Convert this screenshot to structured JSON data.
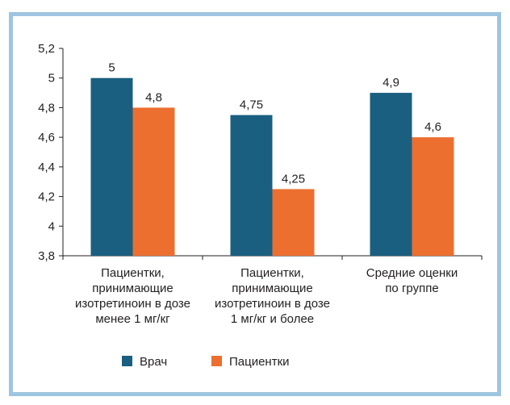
{
  "chart_data": {
    "type": "bar",
    "title": "",
    "xlabel": "",
    "ylabel": "",
    "ylim": [
      3.8,
      5.2
    ],
    "yticks": [
      3.8,
      4.0,
      4.2,
      4.4,
      4.6,
      4.8,
      5.0,
      5.2
    ],
    "ytick_labels": [
      "3,8",
      "4",
      "4,2",
      "4,4",
      "4,6",
      "4,8",
      "5",
      "5,2"
    ],
    "grid": false,
    "legend_position": "bottom",
    "categories": [
      [
        "Пациентки,",
        "принимающие",
        "изотретиноин в дозе",
        "менее 1 мг/кг"
      ],
      [
        "Пациентки,",
        "принимающие",
        "изотретиноин в дозе",
        "1 мг/кг и более"
      ],
      [
        "Средние оценки",
        "по группе"
      ]
    ],
    "series": [
      {
        "name": "Врач",
        "color": "#1a5f80",
        "values": [
          5,
          4.75,
          4.9
        ],
        "labels": [
          "5",
          "4,75",
          "4,9"
        ]
      },
      {
        "name": "Пациентки",
        "color": "#ec6f30",
        "values": [
          4.8,
          4.25,
          4.6
        ],
        "labels": [
          "4,8",
          "4,25",
          "4,6"
        ]
      }
    ]
  },
  "frame_color": "#9ec5e0"
}
